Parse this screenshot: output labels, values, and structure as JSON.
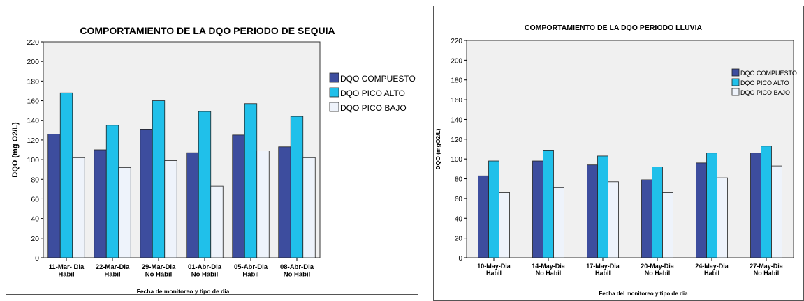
{
  "colors": {
    "compuesto": "#3d4d9e",
    "pico_alto": "#20c0ea",
    "pico_bajo": "#eef3fb",
    "plot_bg": "#f0f0f0",
    "panel_border": "#555555"
  },
  "chart_data": [
    {
      "type": "bar",
      "title": "COMPORTAMIENTO DE LA DQO PERIODO DE SEQUIA",
      "xlabel": "Fecha de monitoreo y tipo de dia",
      "ylabel": "DQO (mg O2/L)",
      "ylim": [
        0,
        220
      ],
      "yticks": [
        0,
        20,
        40,
        60,
        80,
        100,
        120,
        140,
        160,
        180,
        200,
        220
      ],
      "categories": [
        [
          "11-Mar- Dia",
          "Habil"
        ],
        [
          "22-Mar-Dia",
          "Habil"
        ],
        [
          "29-Mar-Dia",
          "No Habil"
        ],
        [
          "01-Abr-Dia",
          "No Habil"
        ],
        [
          "05-Abr-Dia",
          "Habil"
        ],
        [
          "08-Abr-Dia",
          "No Habil"
        ]
      ],
      "series": [
        {
          "name": "DQO COMPUESTO",
          "values": [
            126,
            110,
            131,
            107,
            125,
            113
          ]
        },
        {
          "name": "DQO PICO ALTO",
          "values": [
            168,
            135,
            160,
            149,
            157,
            144
          ]
        },
        {
          "name": "DQO PICO BAJO",
          "values": [
            102,
            92,
            99,
            73,
            109,
            102
          ]
        }
      ],
      "legend": "right",
      "grid": false
    },
    {
      "type": "bar",
      "title": "COMPORTAMIENTO DE LA DQO PERIODO LLUVIA",
      "xlabel": "Fecha del monitoreo y tipo de dia",
      "ylabel": "DQO (mgO2/L)",
      "ylim": [
        0,
        220
      ],
      "yticks": [
        0,
        20,
        40,
        60,
        80,
        100,
        120,
        140,
        160,
        180,
        200,
        220
      ],
      "categories": [
        [
          "10-May-Dia",
          "Habil"
        ],
        [
          "14-May-Dia",
          "No Habil"
        ],
        [
          "17-May-Dia",
          "Habil"
        ],
        [
          "20-May-Dia",
          "No Habil"
        ],
        [
          "24-May-Dia",
          "Habil"
        ],
        [
          "27-May-Dia",
          "No Habil"
        ]
      ],
      "series": [
        {
          "name": "DQO COMPUESTO",
          "values": [
            83,
            98,
            94,
            79,
            96,
            106
          ]
        },
        {
          "name": "DQO PICO ALTO",
          "values": [
            98,
            109,
            103,
            92,
            106,
            113
          ]
        },
        {
          "name": "DQO PICO BAJO",
          "values": [
            66,
            71,
            77,
            66,
            81,
            93
          ]
        }
      ],
      "legend": "right",
      "grid": false
    }
  ]
}
